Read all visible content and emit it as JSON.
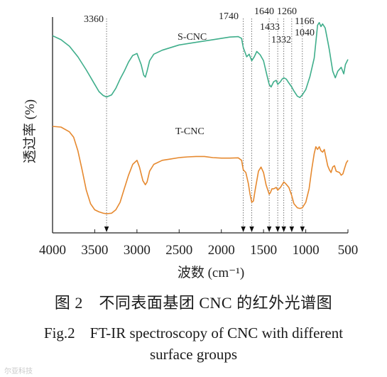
{
  "chart_data": {
    "type": "line",
    "xlabel": "波数 (cm⁻¹)",
    "ylabel": "透过率 (%)",
    "xlim": [
      4000,
      500
    ],
    "x_reversed": true,
    "xticks": [
      4000,
      3500,
      3000,
      2500,
      2000,
      1500,
      1000,
      500
    ],
    "yticks_shown": false,
    "grid": false,
    "reference_lines": [
      {
        "x": 3360,
        "label": "3360"
      },
      {
        "x": 1740,
        "label": "1740"
      },
      {
        "x": 1640,
        "label": "1640"
      },
      {
        "x": 1433,
        "label": "1433"
      },
      {
        "x": 1332,
        "label": "1332"
      },
      {
        "x": 1260,
        "label": "1260"
      },
      {
        "x": 1166,
        "label": "1166"
      },
      {
        "x": 1040,
        "label": "1040"
      }
    ],
    "series": [
      {
        "name": "S-CNC",
        "color": "#3fae8b",
        "points": [
          [
            4000,
            0.89
          ],
          [
            3900,
            0.86
          ],
          [
            3800,
            0.81
          ],
          [
            3700,
            0.73
          ],
          [
            3600,
            0.63
          ],
          [
            3500,
            0.52
          ],
          [
            3450,
            0.465
          ],
          [
            3400,
            0.435
          ],
          [
            3360,
            0.424
          ],
          [
            3300,
            0.44
          ],
          [
            3250,
            0.49
          ],
          [
            3200,
            0.56
          ],
          [
            3150,
            0.62
          ],
          [
            3100,
            0.69
          ],
          [
            3050,
            0.74
          ],
          [
            3000,
            0.755
          ],
          [
            2950,
            0.67
          ],
          [
            2920,
            0.59
          ],
          [
            2900,
            0.575
          ],
          [
            2880,
            0.62
          ],
          [
            2850,
            0.7
          ],
          [
            2800,
            0.75
          ],
          [
            2700,
            0.78
          ],
          [
            2500,
            0.82
          ],
          [
            2300,
            0.84
          ],
          [
            2100,
            0.86
          ],
          [
            1900,
            0.88
          ],
          [
            1800,
            0.883
          ],
          [
            1760,
            0.87
          ],
          [
            1740,
            0.8
          ],
          [
            1700,
            0.73
          ],
          [
            1670,
            0.75
          ],
          [
            1640,
            0.7
          ],
          [
            1610,
            0.73
          ],
          [
            1580,
            0.77
          ],
          [
            1540,
            0.745
          ],
          [
            1500,
            0.7
          ],
          [
            1460,
            0.59
          ],
          [
            1433,
            0.52
          ],
          [
            1410,
            0.5
          ],
          [
            1380,
            0.54
          ],
          [
            1350,
            0.55
          ],
          [
            1332,
            0.52
          ],
          [
            1300,
            0.54
          ],
          [
            1280,
            0.56
          ],
          [
            1260,
            0.57
          ],
          [
            1230,
            0.56
          ],
          [
            1200,
            0.53
          ],
          [
            1166,
            0.5
          ],
          [
            1140,
            0.47
          ],
          [
            1100,
            0.43
          ],
          [
            1070,
            0.42
          ],
          [
            1040,
            0.44
          ],
          [
            1000,
            0.48
          ],
          [
            950,
            0.58
          ],
          [
            900,
            0.72
          ],
          [
            880,
            0.84
          ],
          [
            860,
            0.97
          ],
          [
            840,
            0.99
          ],
          [
            820,
            0.96
          ],
          [
            800,
            0.98
          ],
          [
            770,
            0.95
          ],
          [
            740,
            0.85
          ],
          [
            720,
            0.78
          ],
          [
            700,
            0.7
          ],
          [
            680,
            0.62
          ],
          [
            650,
            0.57
          ],
          [
            620,
            0.62
          ],
          [
            580,
            0.65
          ],
          [
            550,
            0.6
          ],
          [
            530,
            0.67
          ],
          [
            500,
            0.71
          ]
        ]
      },
      {
        "name": "T-CNC",
        "color": "#e6892f",
        "points": [
          [
            4000,
            0.67
          ],
          [
            3900,
            0.665
          ],
          [
            3800,
            0.63
          ],
          [
            3750,
            0.59
          ],
          [
            3700,
            0.49
          ],
          [
            3650,
            0.35
          ],
          [
            3600,
            0.2
          ],
          [
            3550,
            0.1
          ],
          [
            3500,
            0.055
          ],
          [
            3450,
            0.04
          ],
          [
            3400,
            0.03
          ],
          [
            3360,
            0.026
          ],
          [
            3300,
            0.03
          ],
          [
            3250,
            0.055
          ],
          [
            3200,
            0.11
          ],
          [
            3150,
            0.21
          ],
          [
            3100,
            0.31
          ],
          [
            3050,
            0.39
          ],
          [
            3000,
            0.42
          ],
          [
            2970,
            0.37
          ],
          [
            2930,
            0.27
          ],
          [
            2900,
            0.24
          ],
          [
            2880,
            0.26
          ],
          [
            2850,
            0.34
          ],
          [
            2800,
            0.39
          ],
          [
            2700,
            0.42
          ],
          [
            2600,
            0.43
          ],
          [
            2500,
            0.44
          ],
          [
            2400,
            0.445
          ],
          [
            2300,
            0.448
          ],
          [
            2200,
            0.448
          ],
          [
            2100,
            0.44
          ],
          [
            2000,
            0.436
          ],
          [
            1900,
            0.436
          ],
          [
            1800,
            0.438
          ],
          [
            1760,
            0.42
          ],
          [
            1740,
            0.35
          ],
          [
            1710,
            0.33
          ],
          [
            1680,
            0.25
          ],
          [
            1660,
            0.17
          ],
          [
            1640,
            0.11
          ],
          [
            1620,
            0.12
          ],
          [
            1600,
            0.2
          ],
          [
            1560,
            0.34
          ],
          [
            1530,
            0.37
          ],
          [
            1500,
            0.33
          ],
          [
            1470,
            0.24
          ],
          [
            1433,
            0.17
          ],
          [
            1420,
            0.18
          ],
          [
            1400,
            0.21
          ],
          [
            1380,
            0.21
          ],
          [
            1350,
            0.22
          ],
          [
            1332,
            0.2
          ],
          [
            1300,
            0.22
          ],
          [
            1280,
            0.24
          ],
          [
            1260,
            0.26
          ],
          [
            1240,
            0.25
          ],
          [
            1200,
            0.22
          ],
          [
            1166,
            0.16
          ],
          [
            1140,
            0.1
          ],
          [
            1100,
            0.07
          ],
          [
            1070,
            0.065
          ],
          [
            1040,
            0.07
          ],
          [
            1000,
            0.11
          ],
          [
            960,
            0.21
          ],
          [
            930,
            0.35
          ],
          [
            900,
            0.47
          ],
          [
            880,
            0.52
          ],
          [
            860,
            0.5
          ],
          [
            840,
            0.52
          ],
          [
            820,
            0.49
          ],
          [
            800,
            0.48
          ],
          [
            780,
            0.5
          ],
          [
            760,
            0.44
          ],
          [
            740,
            0.38
          ],
          [
            720,
            0.35
          ],
          [
            700,
            0.33
          ],
          [
            680,
            0.37
          ],
          [
            660,
            0.38
          ],
          [
            640,
            0.34
          ],
          [
            600,
            0.33
          ],
          [
            580,
            0.31
          ],
          [
            560,
            0.32
          ],
          [
            540,
            0.36
          ],
          [
            520,
            0.4
          ],
          [
            500,
            0.42
          ]
        ]
      }
    ]
  },
  "captions": {
    "cn": "图 2　不同表面基团 CNC 的红外光谱图",
    "en_line1": "Fig.2　FT-IR spectroscopy of CNC with different",
    "en_line2": "surface groups"
  },
  "watermark": "尔亚科技"
}
